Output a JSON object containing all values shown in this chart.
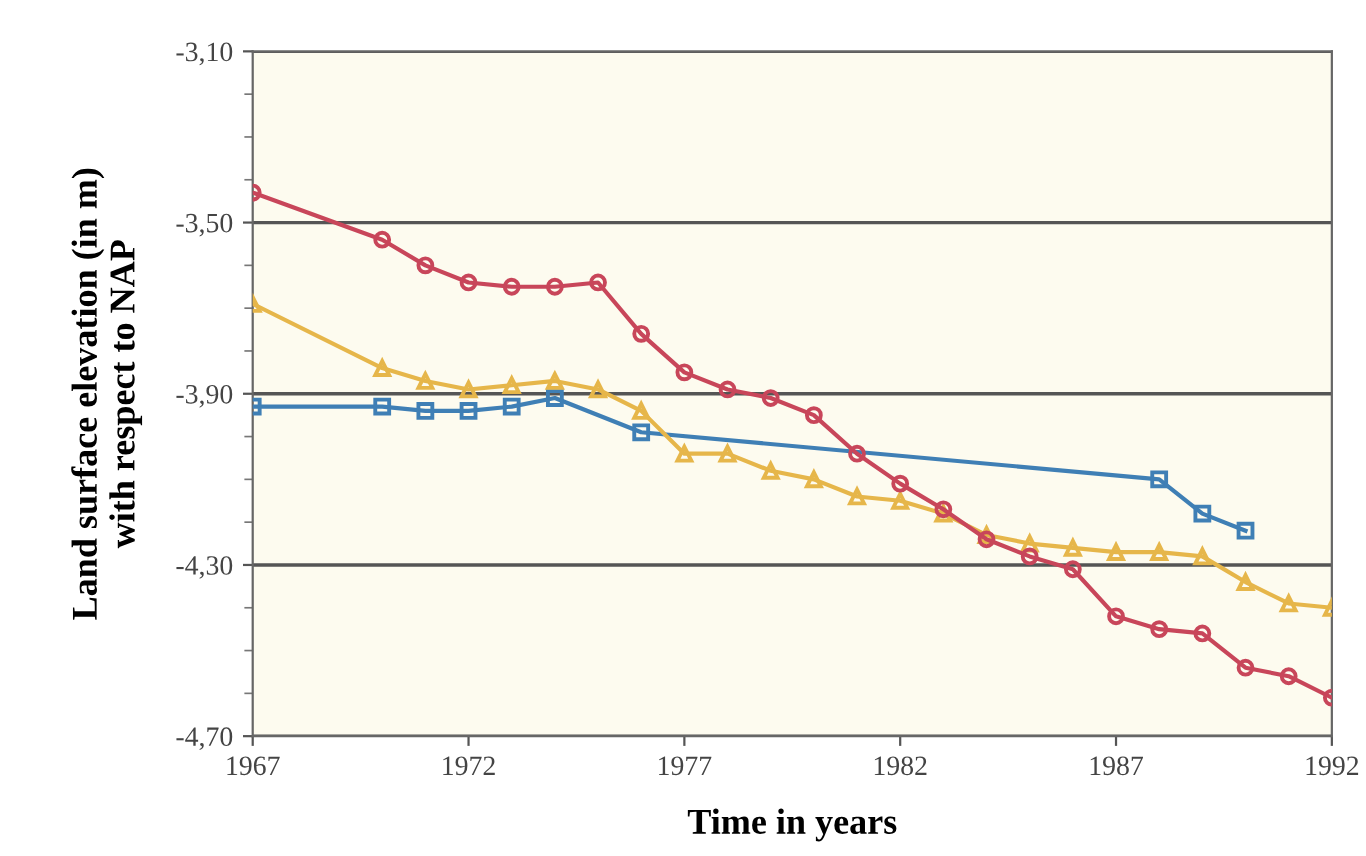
{
  "chart_data": {
    "type": "line",
    "xlabel": "Time in years",
    "ylabel": "Land surface elevation (in m)\nwith respect to NAP",
    "xlim": [
      1967,
      1992
    ],
    "xticks": [
      1967,
      1972,
      1977,
      1982,
      1987,
      1992
    ],
    "ylim": [
      -4.7,
      -3.1
    ],
    "yticks": [
      {
        "value": -3.1,
        "label": "-3,10"
      },
      {
        "value": -3.2,
        "label": null
      },
      {
        "value": -3.3,
        "label": null
      },
      {
        "value": -3.4,
        "label": null
      },
      {
        "value": -3.5,
        "label": "-3,50"
      },
      {
        "value": -3.6,
        "label": null
      },
      {
        "value": -3.7,
        "label": null
      },
      {
        "value": -3.8,
        "label": null
      },
      {
        "value": -3.9,
        "label": "-3,90"
      },
      {
        "value": -4.0,
        "label": null
      },
      {
        "value": -4.1,
        "label": null
      },
      {
        "value": -4.2,
        "label": null
      },
      {
        "value": -4.3,
        "label": "-4,30"
      },
      {
        "value": -4.4,
        "label": null
      },
      {
        "value": -4.5,
        "label": null
      },
      {
        "value": -4.6,
        "label": null
      },
      {
        "value": -4.7,
        "label": "-4,70"
      }
    ],
    "grid": "y",
    "line_style": "solid",
    "series": [
      {
        "color": "#c8465a",
        "marker": "circle",
        "x": [
          1967,
          1970,
          1971,
          1972,
          1973,
          1974,
          1975,
          1976,
          1977,
          1978,
          1979,
          1980,
          1981,
          1982,
          1983,
          1984,
          1985,
          1986,
          1987,
          1988,
          1989,
          1990,
          1991,
          1992
        ],
        "values": [
          -3.43,
          -3.54,
          -3.6,
          -3.64,
          -3.65,
          -3.65,
          -3.64,
          -3.76,
          -3.85,
          -3.89,
          -3.91,
          -3.95,
          -4.04,
          -4.11,
          -4.17,
          -4.24,
          -4.28,
          -4.31,
          -4.42,
          -4.45,
          -4.46,
          -4.54,
          -4.56,
          -4.61
        ]
      },
      {
        "color": "#e6b64a",
        "marker": "triangle",
        "x": [
          1967,
          1970,
          1971,
          1972,
          1973,
          1974,
          1975,
          1976,
          1977,
          1978,
          1979,
          1980,
          1981,
          1982,
          1983,
          1984,
          1985,
          1986,
          1987,
          1988,
          1989,
          1990,
          1991,
          1992
        ],
        "values": [
          -3.69,
          -3.84,
          -3.87,
          -3.89,
          -3.88,
          -3.87,
          -3.89,
          -3.94,
          -4.04,
          -4.04,
          -4.08,
          -4.1,
          -4.14,
          -4.15,
          -4.18,
          -4.23,
          -4.25,
          -4.26,
          -4.27,
          -4.27,
          -4.28,
          -4.34,
          -4.39,
          -4.4
        ]
      },
      {
        "color": "#3f7fb5",
        "marker": "square",
        "x": [
          1967,
          1970,
          1971,
          1972,
          1973,
          1974,
          1976,
          1988,
          1989,
          1990
        ],
        "values": [
          -3.93,
          -3.93,
          -3.94,
          -3.94,
          -3.93,
          -3.91,
          -3.99,
          -4.1,
          -4.18,
          -4.22
        ]
      }
    ]
  }
}
